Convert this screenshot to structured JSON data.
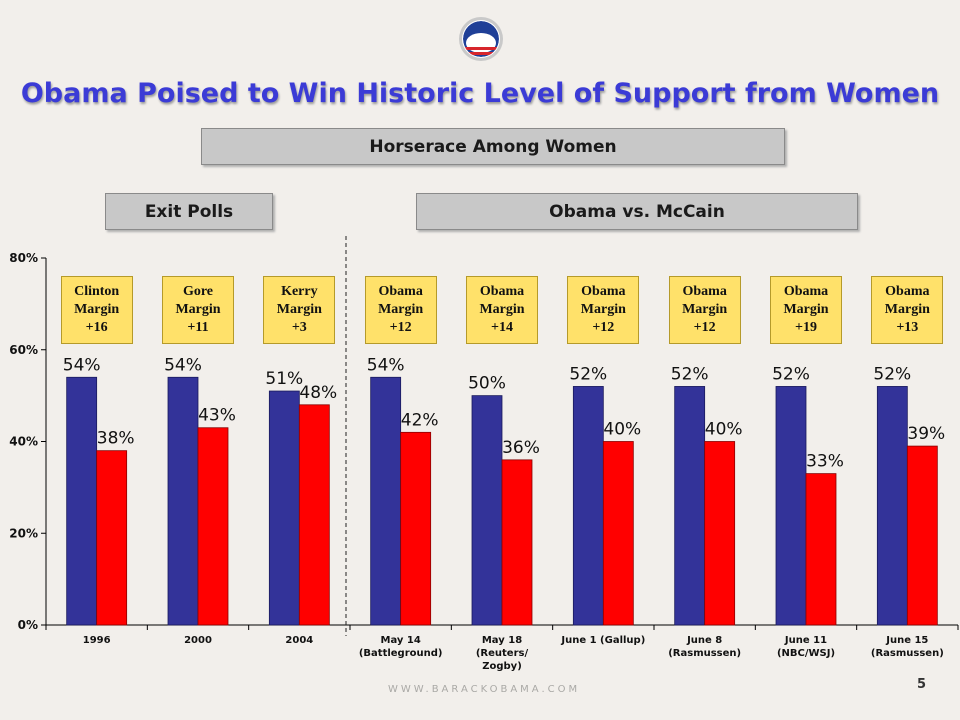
{
  "title": "Obama Poised to Win Historic Level of Support from Women",
  "headers": {
    "horserace": "Horserace Among Women",
    "exit_polls": "Exit Polls",
    "matchup": "Obama vs. McCain"
  },
  "margins": [
    {
      "name": "Clinton",
      "word": "Margin",
      "value": "+16"
    },
    {
      "name": "Gore",
      "word": "Margin",
      "value": "+11"
    },
    {
      "name": "Kerry",
      "word": "Margin",
      "value": "+3"
    },
    {
      "name": "Obama",
      "word": "Margin",
      "value": "+12"
    },
    {
      "name": "Obama",
      "word": "Margin",
      "value": "+14"
    },
    {
      "name": "Obama",
      "word": "Margin",
      "value": "+12"
    },
    {
      "name": "Obama",
      "word": "Margin",
      "value": "+12"
    },
    {
      "name": "Obama",
      "word": "Margin",
      "value": "+19"
    },
    {
      "name": "Obama",
      "word": "Margin",
      "value": "+13"
    }
  ],
  "footer": "WWW.BARACKOBAMA.COM",
  "page_number": "5",
  "colors": {
    "democrat": "#333399",
    "republican": "#ff0000",
    "title": "#3b3bd6",
    "margin_box": "#ffe16a"
  },
  "icons": {
    "logo": "obama-campaign-logo"
  },
  "chart_data": {
    "type": "bar",
    "categories": [
      [
        "1996"
      ],
      [
        "2000"
      ],
      [
        "2004"
      ],
      [
        "May 14",
        "(Battleground)"
      ],
      [
        "May 18",
        "(Reuters/",
        "Zogby)"
      ],
      [
        "June 1 (Gallup)"
      ],
      [
        "June 8",
        "(Rasmussen)"
      ],
      [
        "June 11",
        "(NBC/WSJ)"
      ],
      [
        "June 15",
        "(Rasmussen)"
      ]
    ],
    "series": [
      {
        "values": [
          54,
          54,
          51,
          54,
          50,
          52,
          52,
          52,
          52
        ],
        "color": "#333399"
      },
      {
        "values": [
          38,
          43,
          48,
          42,
          36,
          40,
          40,
          33,
          39
        ],
        "color": "#ff0000"
      }
    ],
    "y_ticks": [
      "0%",
      "20%",
      "40%",
      "60%",
      "80%"
    ],
    "ylim": [
      0,
      80
    ],
    "value_suffix": "%",
    "divider_after_index": 2
  }
}
